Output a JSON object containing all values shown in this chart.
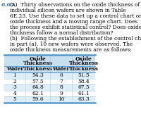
{
  "problem_number": "6.65.",
  "part_a_lines": [
    "(a)  Thirty observations on the oxide thickness of",
    "individual silicon wafers are shown in Table",
    "6E.23. Use these data to set up a control chart on",
    "oxide thickness and a moving range chart. Does",
    "the process exhibit statistical control? Does oxide",
    "thickness follow a normal distribution?"
  ],
  "part_b_lines": [
    "(b)  Following the establishment of the control charts",
    "in part (a), 10 new wafers were observed. The",
    "oxide thickness measurements are as follows:"
  ],
  "col_headers_top": [
    "",
    "Oxide",
    "",
    "Oxide"
  ],
  "col_headers_bot": [
    "Wafer",
    "Thickness",
    "Wafer",
    "Thickness"
  ],
  "wafers_left": [
    "1",
    "2",
    "3",
    "4",
    "5"
  ],
  "thickness_left": [
    "54.3",
    "57.5",
    "64.8",
    "62.1",
    "59.6"
  ],
  "wafers_right": [
    "6",
    "7",
    "8",
    "9",
    "10"
  ],
  "thickness_right": [
    "51.5",
    "58.4",
    "67.5",
    "61.1",
    "63.3"
  ],
  "table_header_bg": "#c8dff0",
  "table_row_bg_alt": "#ddeef8",
  "table_row_bg": "#ffffff",
  "table_border_color": "#5599cc",
  "background_color": "#ffffff",
  "text_color": "#000000",
  "label_color": "#4477aa",
  "font_size_num": 5.8,
  "font_size_body": 5.4,
  "font_size_table": 5.4
}
